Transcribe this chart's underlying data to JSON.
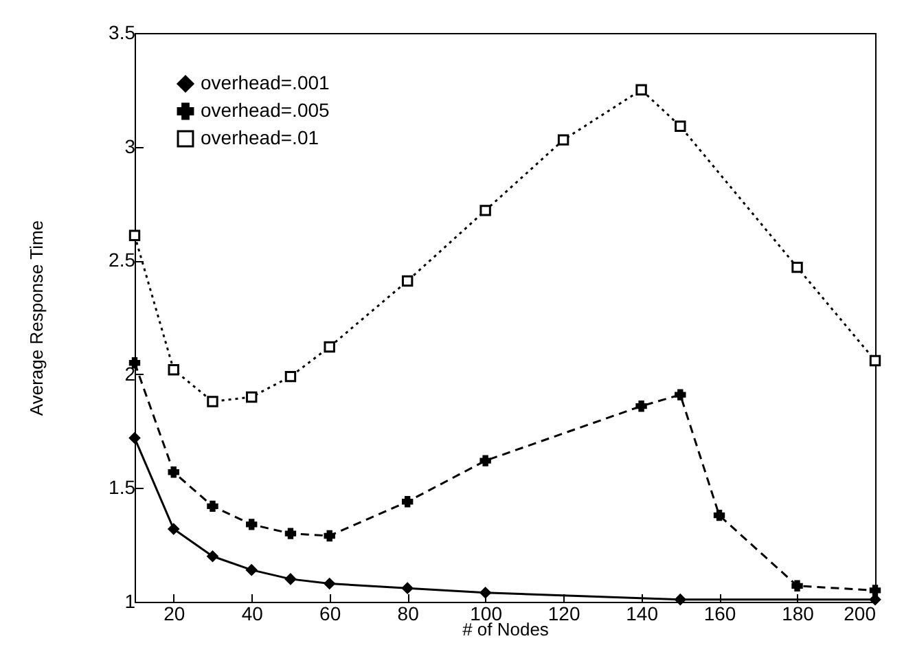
{
  "chart_data": {
    "type": "line",
    "xlabel": "# of Nodes",
    "ylabel": "Average Response Time",
    "xlim": [
      10,
      200
    ],
    "xticks": [
      20,
      40,
      60,
      80,
      100,
      120,
      140,
      160,
      180,
      200
    ],
    "ylim": [
      1,
      3.5
    ],
    "yticks": [
      1,
      1.5,
      2,
      2.5,
      3,
      3.5
    ],
    "grid": false,
    "legend": "top left",
    "series": [
      {
        "name": "overhead=.001",
        "color": "#000000",
        "marker": "diamond",
        "line_style": "solid",
        "x": [
          10,
          20,
          30,
          40,
          50,
          60,
          80,
          100,
          150,
          200
        ],
        "values": [
          1.72,
          1.32,
          1.2,
          1.14,
          1.1,
          1.08,
          1.06,
          1.04,
          1.01,
          1.01
        ]
      },
      {
        "name": "overhead=.005",
        "color": "#000000",
        "marker": "cross",
        "line_style": "dashed",
        "x": [
          10,
          20,
          30,
          40,
          50,
          60,
          80,
          100,
          140,
          150,
          160,
          180,
          200
        ],
        "values": [
          2.05,
          1.57,
          1.42,
          1.34,
          1.3,
          1.29,
          1.44,
          1.62,
          1.86,
          1.91,
          1.38,
          1.07,
          1.05
        ]
      },
      {
        "name": "overhead=.01",
        "color": "#000000",
        "marker": "square",
        "line_style": "dotted",
        "x": [
          10,
          20,
          30,
          40,
          50,
          60,
          80,
          100,
          120,
          140,
          150,
          180,
          200
        ],
        "values": [
          2.61,
          2.02,
          1.88,
          1.9,
          1.99,
          2.12,
          2.41,
          2.72,
          3.03,
          3.25,
          3.09,
          2.47,
          2.06
        ]
      }
    ]
  }
}
